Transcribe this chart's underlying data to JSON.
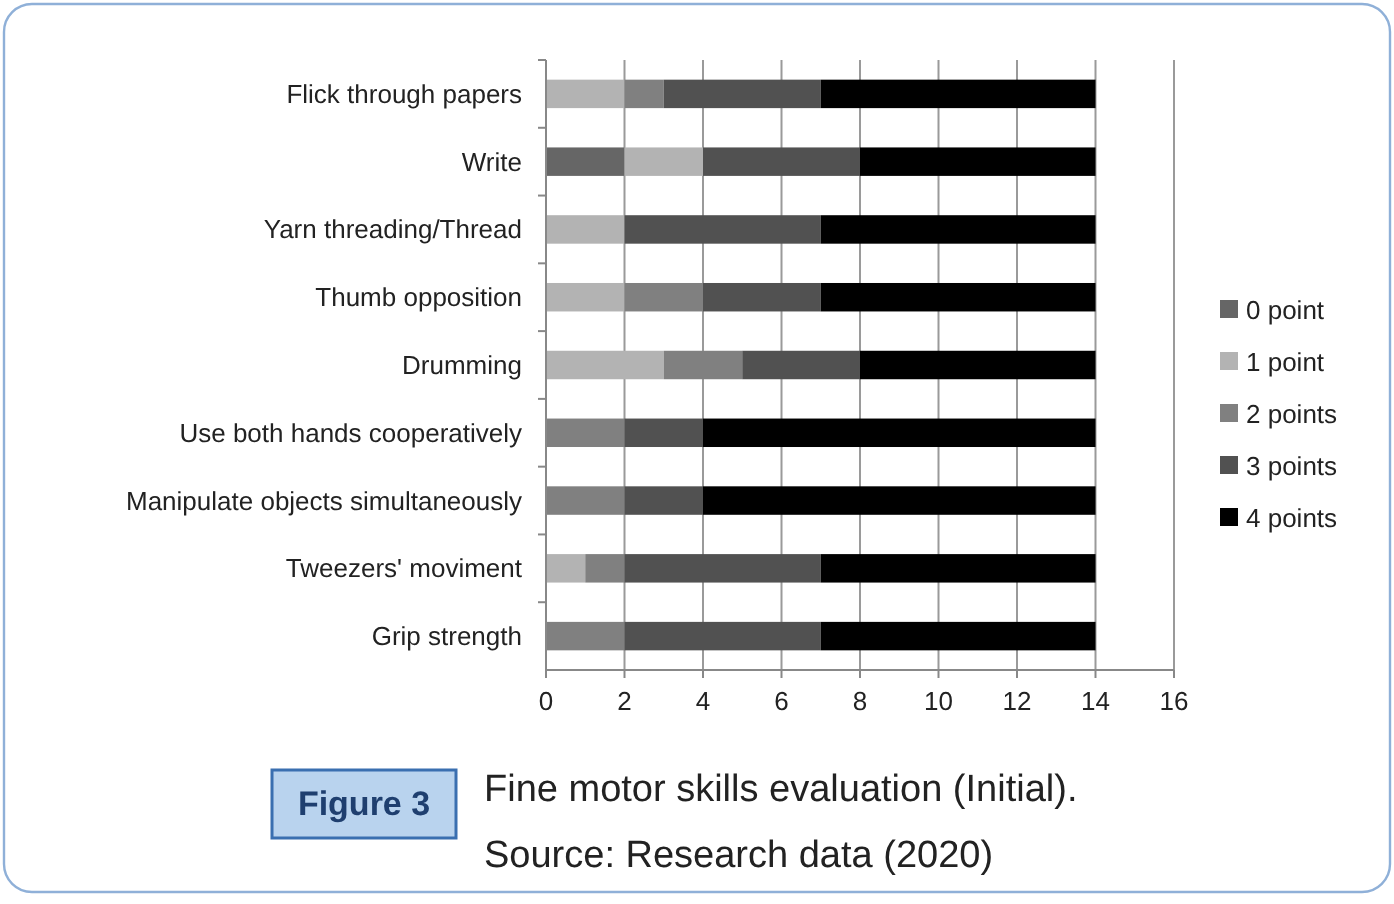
{
  "chart_data": {
    "type": "bar",
    "orientation": "horizontal",
    "stacked": true,
    "title": "Fine motor skills evaluation (Initial).",
    "annotations": [
      "Figure 3",
      "Source: Research data (2020)"
    ],
    "categories": [
      "Flick through papers",
      "Write",
      "Yarn threading/Thread",
      "Thumb opposition",
      "Drumming",
      "Use both hands cooperatively",
      "Manipulate objects simultaneously",
      "Tweezers' moviment",
      "Grip strength"
    ],
    "series": [
      {
        "name": "0 point",
        "color": "#666666",
        "values": [
          0,
          2,
          0,
          0,
          0,
          0,
          0,
          0,
          0
        ]
      },
      {
        "name": "1 point",
        "color": "#b3b3b3",
        "values": [
          2,
          2,
          2,
          2,
          3,
          0,
          0,
          1,
          0
        ]
      },
      {
        "name": "2 points",
        "color": "#808080",
        "values": [
          1,
          0,
          0,
          2,
          2,
          2,
          2,
          1,
          2
        ]
      },
      {
        "name": "3 points",
        "color": "#515151",
        "values": [
          4,
          4,
          5,
          3,
          3,
          2,
          2,
          5,
          5
        ]
      },
      {
        "name": "4 points",
        "color": "#000000",
        "values": [
          7,
          6,
          7,
          7,
          6,
          10,
          10,
          7,
          7
        ]
      }
    ],
    "xlim": [
      0,
      16
    ],
    "xticks": [
      0,
      2,
      4,
      6,
      8,
      10,
      12,
      14,
      16
    ],
    "grid": "x",
    "legend": "right"
  }
}
